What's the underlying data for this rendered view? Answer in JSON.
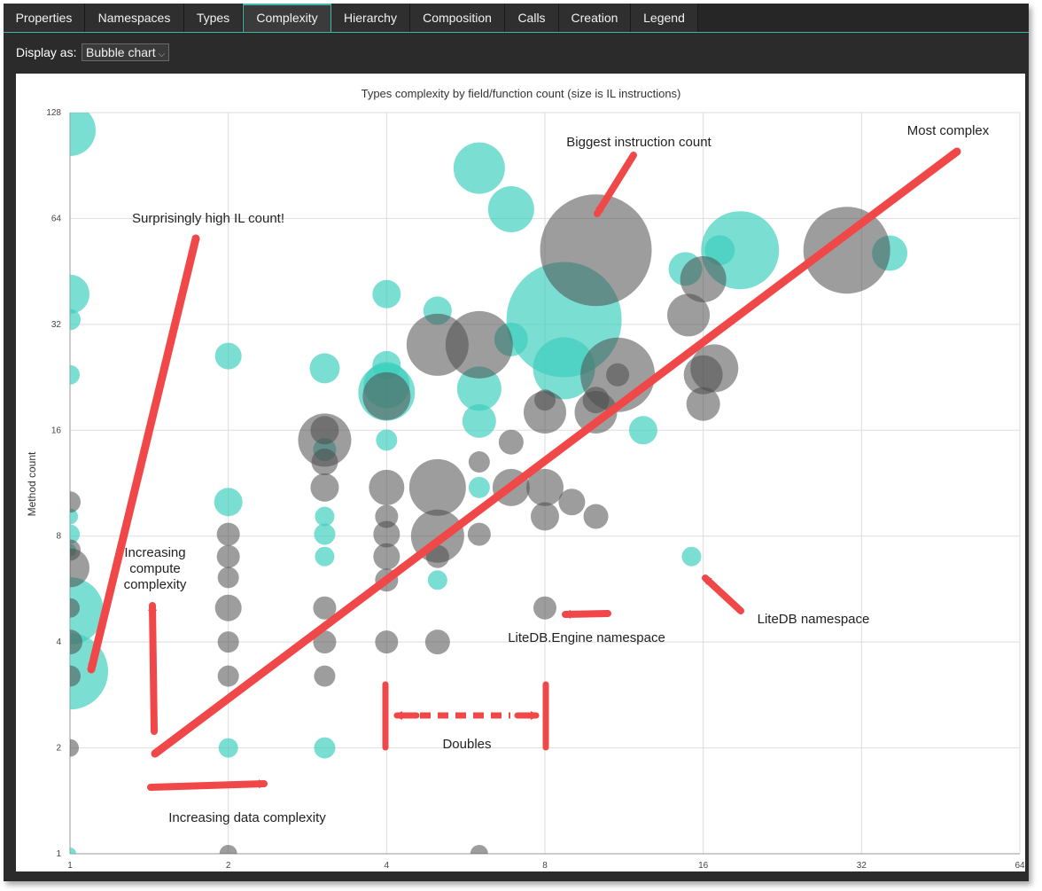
{
  "tabs": [
    {
      "label": "Properties",
      "active": false
    },
    {
      "label": "Namespaces",
      "active": false
    },
    {
      "label": "Types",
      "active": false
    },
    {
      "label": "Complexity",
      "active": true
    },
    {
      "label": "Hierarchy",
      "active": false
    },
    {
      "label": "Composition",
      "active": false
    },
    {
      "label": "Calls",
      "active": false
    },
    {
      "label": "Creation",
      "active": false
    },
    {
      "label": "Legend",
      "active": false
    }
  ],
  "toolbar": {
    "display_label": "Display as:",
    "display_value": "Bubble chart"
  },
  "colors": {
    "teal": "#3ccfbd",
    "gray": "#4d4d4d",
    "arrow": "#f04848",
    "accent": "#3fb6a8"
  },
  "chart_data": {
    "type": "scatter",
    "title": "Types complexity by field/function count (size is IL instructions)",
    "xlabel": "",
    "ylabel": "Method count",
    "x_scale": "log2",
    "y_scale": "log2",
    "xlim": [
      1,
      64
    ],
    "ylim": [
      1,
      128
    ],
    "x_ticks": [
      "1",
      "2",
      "4",
      "8",
      "16",
      "32",
      "64"
    ],
    "y_ticks": [
      "1",
      "2",
      "4",
      "8",
      "16",
      "32",
      "64",
      "128"
    ],
    "grid": true,
    "size_note": "bubble size is IL instructions",
    "series": [
      {
        "key": "teal",
        "points": [
          {
            "x": 1.0,
            "y": 114,
            "r": 29
          },
          {
            "x": 1.0,
            "y": 39,
            "r": 22
          },
          {
            "x": 1.0,
            "y": 33,
            "r": 12
          },
          {
            "x": 1.0,
            "y": 23,
            "r": 11
          },
          {
            "x": 1.0,
            "y": 9.1,
            "r": 9
          },
          {
            "x": 1.0,
            "y": 8.1,
            "r": 11
          },
          {
            "x": 1.0,
            "y": 7.3,
            "r": 7
          },
          {
            "x": 1.0,
            "y": 4.9,
            "r": 38
          },
          {
            "x": 1.0,
            "y": 3.3,
            "r": 43
          },
          {
            "x": 1.0,
            "y": 1.0,
            "r": 7
          },
          {
            "x": 2.0,
            "y": 26,
            "r": 15
          },
          {
            "x": 2.0,
            "y": 10,
            "r": 16
          },
          {
            "x": 2.0,
            "y": 2.0,
            "r": 11
          },
          {
            "x": 3.05,
            "y": 24,
            "r": 17
          },
          {
            "x": 3.05,
            "y": 14.1,
            "r": 13
          },
          {
            "x": 3.05,
            "y": 9.1,
            "r": 11
          },
          {
            "x": 3.05,
            "y": 8.1,
            "r": 12
          },
          {
            "x": 3.05,
            "y": 7.0,
            "r": 11
          },
          {
            "x": 3.05,
            "y": 2.0,
            "r": 12
          },
          {
            "x": 4.0,
            "y": 39,
            "r": 16
          },
          {
            "x": 4.0,
            "y": 24.5,
            "r": 16
          },
          {
            "x": 4.0,
            "y": 21.5,
            "r": 26
          },
          {
            "x": 4.0,
            "y": 20.5,
            "r": 32
          },
          {
            "x": 4.0,
            "y": 15.0,
            "r": 12
          },
          {
            "x": 5.0,
            "y": 35,
            "r": 16
          },
          {
            "x": 5.0,
            "y": 6.0,
            "r": 11
          },
          {
            "x": 6.0,
            "y": 89,
            "r": 29
          },
          {
            "x": 6.0,
            "y": 21,
            "r": 25
          },
          {
            "x": 6.0,
            "y": 17.0,
            "r": 19
          },
          {
            "x": 6.0,
            "y": 11.0,
            "r": 12
          },
          {
            "x": 6.9,
            "y": 68,
            "r": 26
          },
          {
            "x": 6.9,
            "y": 29,
            "r": 19
          },
          {
            "x": 8.7,
            "y": 33,
            "r": 65
          },
          {
            "x": 8.7,
            "y": 24,
            "r": 35
          },
          {
            "x": 12.3,
            "y": 16.0,
            "r": 16
          },
          {
            "x": 14.8,
            "y": 46,
            "r": 19
          },
          {
            "x": 15.2,
            "y": 7.0,
            "r": 11
          },
          {
            "x": 17.2,
            "y": 52,
            "r": 17
          },
          {
            "x": 18.8,
            "y": 52,
            "r": 44
          },
          {
            "x": 36.2,
            "y": 51,
            "r": 20
          }
        ]
      },
      {
        "key": "gray",
        "points": [
          {
            "x": 1.0,
            "y": 10.0,
            "r": 12
          },
          {
            "x": 1.0,
            "y": 7.3,
            "r": 12
          },
          {
            "x": 1.0,
            "y": 6.5,
            "r": 22
          },
          {
            "x": 1.0,
            "y": 5.0,
            "r": 11
          },
          {
            "x": 1.0,
            "y": 4.0,
            "r": 14
          },
          {
            "x": 1.0,
            "y": 3.2,
            "r": 12
          },
          {
            "x": 1.0,
            "y": 2.0,
            "r": 10
          },
          {
            "x": 2.0,
            "y": 8.1,
            "r": 13
          },
          {
            "x": 2.0,
            "y": 7.0,
            "r": 13
          },
          {
            "x": 2.0,
            "y": 6.1,
            "r": 12
          },
          {
            "x": 2.0,
            "y": 5.0,
            "r": 15
          },
          {
            "x": 2.0,
            "y": 4.0,
            "r": 12
          },
          {
            "x": 2.0,
            "y": 3.2,
            "r": 12
          },
          {
            "x": 2.0,
            "y": 1.0,
            "r": 10
          },
          {
            "x": 3.05,
            "y": 15.0,
            "r": 30
          },
          {
            "x": 3.05,
            "y": 16.0,
            "r": 16
          },
          {
            "x": 3.05,
            "y": 13.0,
            "r": 15
          },
          {
            "x": 3.05,
            "y": 11.0,
            "r": 16
          },
          {
            "x": 3.05,
            "y": 5.0,
            "r": 13
          },
          {
            "x": 3.05,
            "y": 4.0,
            "r": 13
          },
          {
            "x": 3.05,
            "y": 3.2,
            "r": 12
          },
          {
            "x": 4.0,
            "y": 11.0,
            "r": 20
          },
          {
            "x": 4.0,
            "y": 9.1,
            "r": 13
          },
          {
            "x": 4.0,
            "y": 8.1,
            "r": 15
          },
          {
            "x": 4.0,
            "y": 7.0,
            "r": 15
          },
          {
            "x": 4.0,
            "y": 6.0,
            "r": 13
          },
          {
            "x": 4.0,
            "y": 4.0,
            "r": 13
          },
          {
            "x": 4.0,
            "y": 20.0,
            "r": 27
          },
          {
            "x": 5.0,
            "y": 28,
            "r": 35
          },
          {
            "x": 5.0,
            "y": 11.0,
            "r": 32
          },
          {
            "x": 5.0,
            "y": 8.0,
            "r": 30
          },
          {
            "x": 5.0,
            "y": 7.0,
            "r": 13
          },
          {
            "x": 5.0,
            "y": 4.0,
            "r": 14
          },
          {
            "x": 6.0,
            "y": 28,
            "r": 38
          },
          {
            "x": 6.0,
            "y": 13.0,
            "r": 12
          },
          {
            "x": 6.0,
            "y": 8.1,
            "r": 13
          },
          {
            "x": 6.0,
            "y": 1.0,
            "r": 10
          },
          {
            "x": 6.9,
            "y": 14.8,
            "r": 14
          },
          {
            "x": 6.9,
            "y": 11.0,
            "r": 21
          },
          {
            "x": 8.0,
            "y": 19.5,
            "r": 12
          },
          {
            "x": 8.0,
            "y": 18.0,
            "r": 24
          },
          {
            "x": 8.0,
            "y": 11.0,
            "r": 21
          },
          {
            "x": 8.0,
            "y": 9.1,
            "r": 16
          },
          {
            "x": 8.0,
            "y": 5.0,
            "r": 13
          },
          {
            "x": 9.0,
            "y": 10.0,
            "r": 15
          },
          {
            "x": 10.0,
            "y": 52,
            "r": 63
          },
          {
            "x": 10.0,
            "y": 19.5,
            "r": 15
          },
          {
            "x": 10.0,
            "y": 18.0,
            "r": 24
          },
          {
            "x": 10.0,
            "y": 9.1,
            "r": 14
          },
          {
            "x": 11.0,
            "y": 23,
            "r": 42
          },
          {
            "x": 11.0,
            "y": 23,
            "r": 13
          },
          {
            "x": 15.0,
            "y": 34,
            "r": 24
          },
          {
            "x": 16.0,
            "y": 43,
            "r": 26
          },
          {
            "x": 16.0,
            "y": 23,
            "r": 22
          },
          {
            "x": 16.0,
            "y": 19.0,
            "r": 19
          },
          {
            "x": 16.8,
            "y": 24,
            "r": 27
          },
          {
            "x": 30.0,
            "y": 52,
            "r": 49
          }
        ]
      }
    ],
    "annotations": [
      {
        "text": "Biggest instruction count"
      },
      {
        "text": "Most complex"
      },
      {
        "text": "Surprisingly high IL count!"
      },
      {
        "text": "Increasing compute complexity",
        "lines": [
          "Increasing",
          "compute",
          "complexity"
        ]
      },
      {
        "text": "LiteDB namespace"
      },
      {
        "text": "LiteDB.Engine namespace"
      },
      {
        "text": "Doubles"
      },
      {
        "text": "Increasing data complexity"
      }
    ]
  }
}
